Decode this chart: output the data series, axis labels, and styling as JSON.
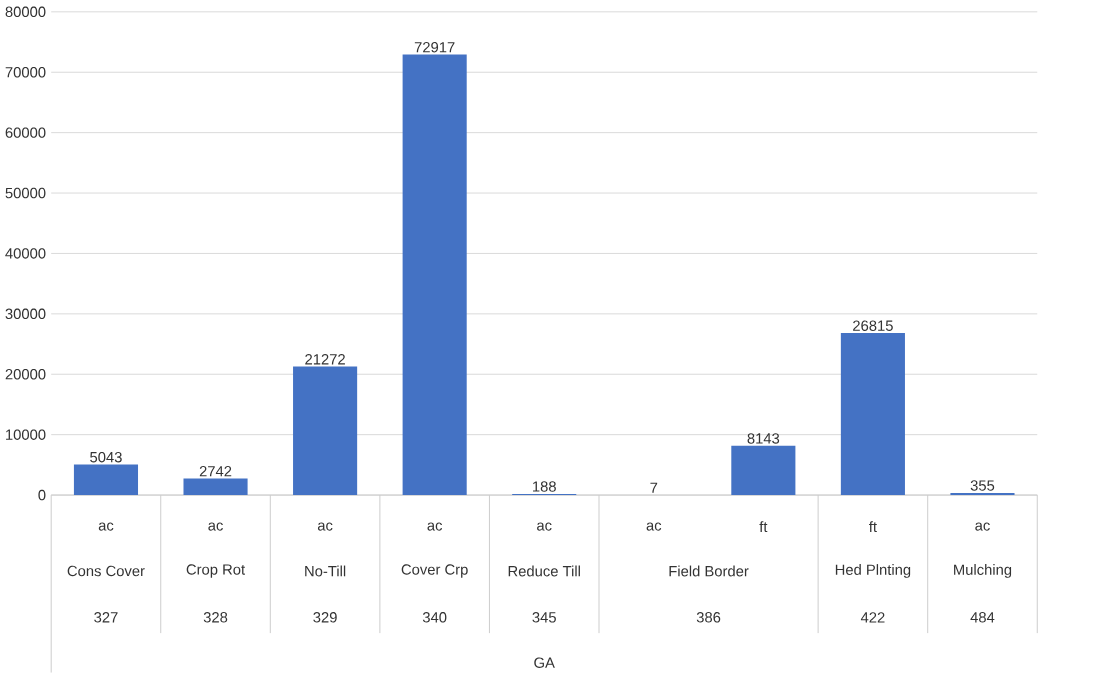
{
  "chart_data": {
    "type": "bar",
    "categories": [
      "ac",
      "ac",
      "ac",
      "ac",
      "ac",
      "ac",
      "ft",
      "ft",
      "ac"
    ],
    "values": [
      5043,
      2742,
      21272,
      72917,
      188,
      7,
      8143,
      26815,
      355
    ],
    "color": "#4472c4",
    "ylim": [
      0,
      80000
    ],
    "yticks": [
      0,
      10000,
      20000,
      30000,
      40000,
      50000,
      60000,
      70000,
      80000
    ],
    "grid": "y",
    "data_labels": true,
    "annotations": [
      "Cons Cover",
      "Crop Rot",
      "No-Till",
      "Cover Crp",
      "Reduce Till",
      "Field Border",
      "Hed Plnting",
      "Mulching",
      "327",
      "328",
      "329",
      "340",
      "345",
      "386",
      "422",
      "484",
      "GA"
    ]
  }
}
